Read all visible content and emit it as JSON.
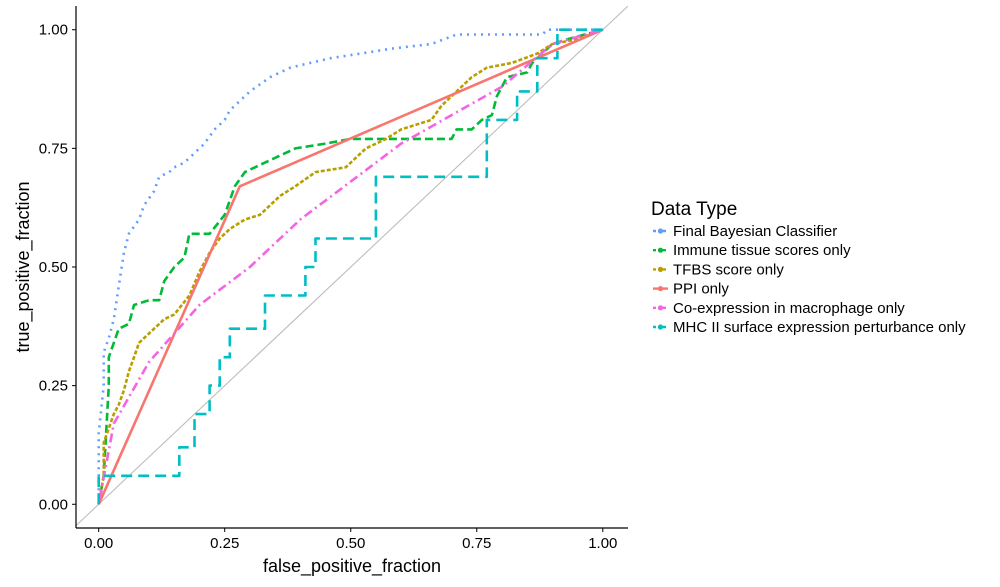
{
  "chart_data": {
    "type": "line",
    "xlabel": "false_positive_fraction",
    "ylabel": "true_positive_fraction",
    "xlim": [
      -0.045,
      1.05
    ],
    "ylim": [
      -0.05,
      1.05
    ],
    "x_ticks": [
      "0.00",
      "0.25",
      "0.50",
      "0.75",
      "1.00"
    ],
    "y_ticks": [
      "0.00",
      "0.25",
      "0.50",
      "0.75",
      "1.00"
    ],
    "grid": false,
    "diagonal_reference": true,
    "legend_title": "Data Type",
    "legend_position": "right",
    "series": [
      {
        "name": "Final Bayesian Classifier",
        "color": "#619CFF",
        "dash": "dotted",
        "points": [
          [
            0,
            0
          ],
          [
            0,
            0.06
          ],
          [
            0,
            0.15
          ],
          [
            0.01,
            0.25
          ],
          [
            0.01,
            0.32
          ],
          [
            0.02,
            0.35
          ],
          [
            0.03,
            0.39
          ],
          [
            0.04,
            0.46
          ],
          [
            0.05,
            0.53
          ],
          [
            0.06,
            0.57
          ],
          [
            0.08,
            0.6
          ],
          [
            0.09,
            0.63
          ],
          [
            0.11,
            0.66
          ],
          [
            0.12,
            0.69
          ],
          [
            0.14,
            0.7
          ],
          [
            0.15,
            0.71
          ],
          [
            0.17,
            0.72
          ],
          [
            0.19,
            0.74
          ],
          [
            0.21,
            0.76
          ],
          [
            0.23,
            0.79
          ],
          [
            0.25,
            0.81
          ],
          [
            0.26,
            0.83
          ],
          [
            0.28,
            0.85
          ],
          [
            0.3,
            0.87
          ],
          [
            0.34,
            0.9
          ],
          [
            0.38,
            0.92
          ],
          [
            0.42,
            0.93
          ],
          [
            0.46,
            0.94
          ],
          [
            0.52,
            0.95
          ],
          [
            0.58,
            0.96
          ],
          [
            0.66,
            0.97
          ],
          [
            0.71,
            0.99
          ],
          [
            0.88,
            0.99
          ],
          [
            0.89,
            1.0
          ],
          [
            1.0,
            1.0
          ]
        ]
      },
      {
        "name": "Immune tissue scores only",
        "color": "#00BA38",
        "dash": "dashed",
        "points": [
          [
            0,
            0
          ],
          [
            0.01,
            0.06
          ],
          [
            0.02,
            0.25
          ],
          [
            0.02,
            0.31
          ],
          [
            0.03,
            0.34
          ],
          [
            0.04,
            0.37
          ],
          [
            0.06,
            0.38
          ],
          [
            0.07,
            0.42
          ],
          [
            0.1,
            0.43
          ],
          [
            0.12,
            0.43
          ],
          [
            0.13,
            0.47
          ],
          [
            0.15,
            0.5
          ],
          [
            0.17,
            0.52
          ],
          [
            0.18,
            0.57
          ],
          [
            0.22,
            0.57
          ],
          [
            0.25,
            0.61
          ],
          [
            0.27,
            0.67
          ],
          [
            0.29,
            0.7
          ],
          [
            0.33,
            0.72
          ],
          [
            0.39,
            0.75
          ],
          [
            0.45,
            0.76
          ],
          [
            0.5,
            0.77
          ],
          [
            0.58,
            0.77
          ],
          [
            0.7,
            0.77
          ],
          [
            0.71,
            0.79
          ],
          [
            0.74,
            0.79
          ],
          [
            0.76,
            0.81
          ],
          [
            0.78,
            0.82
          ],
          [
            0.79,
            0.86
          ],
          [
            0.81,
            0.9
          ],
          [
            0.85,
            0.91
          ],
          [
            0.86,
            0.93
          ],
          [
            0.88,
            0.95
          ],
          [
            0.9,
            0.97
          ],
          [
            0.93,
            0.98
          ],
          [
            1.0,
            1.0
          ]
        ]
      },
      {
        "name": "TFBS score only",
        "color": "#B79F00",
        "dash": "dotted-dash",
        "points": [
          [
            0,
            0
          ],
          [
            0.01,
            0.06
          ],
          [
            0.01,
            0.13
          ],
          [
            0.02,
            0.16
          ],
          [
            0.03,
            0.19
          ],
          [
            0.04,
            0.21
          ],
          [
            0.05,
            0.24
          ],
          [
            0.06,
            0.28
          ],
          [
            0.07,
            0.31
          ],
          [
            0.08,
            0.34
          ],
          [
            0.1,
            0.36
          ],
          [
            0.11,
            0.37
          ],
          [
            0.13,
            0.39
          ],
          [
            0.15,
            0.4
          ],
          [
            0.18,
            0.44
          ],
          [
            0.2,
            0.49
          ],
          [
            0.22,
            0.53
          ],
          [
            0.24,
            0.56
          ],
          [
            0.26,
            0.58
          ],
          [
            0.29,
            0.6
          ],
          [
            0.32,
            0.61
          ],
          [
            0.36,
            0.65
          ],
          [
            0.39,
            0.67
          ],
          [
            0.43,
            0.7
          ],
          [
            0.49,
            0.71
          ],
          [
            0.53,
            0.75
          ],
          [
            0.57,
            0.77
          ],
          [
            0.6,
            0.79
          ],
          [
            0.66,
            0.81
          ],
          [
            0.68,
            0.84
          ],
          [
            0.71,
            0.87
          ],
          [
            0.74,
            0.9
          ],
          [
            0.77,
            0.92
          ],
          [
            0.82,
            0.93
          ],
          [
            0.87,
            0.95
          ],
          [
            0.9,
            0.97
          ],
          [
            0.95,
            0.98
          ],
          [
            1.0,
            1.0
          ]
        ]
      },
      {
        "name": "PPI only",
        "color": "#F8766D",
        "dash": "solid",
        "points": [
          [
            0,
            0
          ],
          [
            0.28,
            0.67
          ],
          [
            1.0,
            1.0
          ]
        ]
      },
      {
        "name": "Co-expression in macrophage only",
        "color": "#F564E3",
        "dash": "dot-dash",
        "points": [
          [
            0,
            0
          ],
          [
            0.03,
            0.17
          ],
          [
            0.1,
            0.3
          ],
          [
            0.2,
            0.42
          ],
          [
            0.3,
            0.5
          ],
          [
            0.4,
            0.6
          ],
          [
            0.5,
            0.68
          ],
          [
            0.6,
            0.76
          ],
          [
            0.7,
            0.82
          ],
          [
            0.8,
            0.88
          ],
          [
            0.9,
            0.97
          ],
          [
            1.0,
            1.0
          ]
        ]
      },
      {
        "name": "MHC II surface expression perturbance only",
        "color": "#00BFC4",
        "dash": "long-dash",
        "points": [
          [
            0,
            0
          ],
          [
            0,
            0.06
          ],
          [
            0.16,
            0.06
          ],
          [
            0.16,
            0.12
          ],
          [
            0.19,
            0.12
          ],
          [
            0.19,
            0.19
          ],
          [
            0.22,
            0.19
          ],
          [
            0.22,
            0.25
          ],
          [
            0.24,
            0.25
          ],
          [
            0.24,
            0.31
          ],
          [
            0.26,
            0.31
          ],
          [
            0.26,
            0.37
          ],
          [
            0.33,
            0.37
          ],
          [
            0.33,
            0.44
          ],
          [
            0.41,
            0.44
          ],
          [
            0.41,
            0.5
          ],
          [
            0.43,
            0.5
          ],
          [
            0.43,
            0.56
          ],
          [
            0.55,
            0.56
          ],
          [
            0.55,
            0.69
          ],
          [
            0.77,
            0.69
          ],
          [
            0.77,
            0.75
          ],
          [
            0.77,
            0.81
          ],
          [
            0.83,
            0.81
          ],
          [
            0.83,
            0.87
          ],
          [
            0.87,
            0.87
          ],
          [
            0.87,
            0.94
          ],
          [
            0.91,
            0.94
          ],
          [
            0.91,
            1.0
          ],
          [
            1.0,
            1.0
          ]
        ]
      }
    ]
  }
}
